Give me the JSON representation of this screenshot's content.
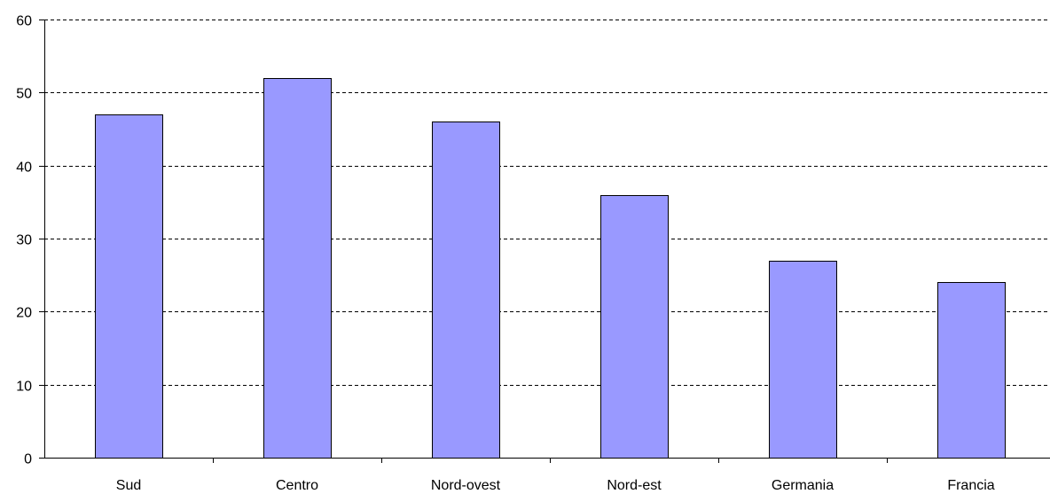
{
  "chart_data": {
    "type": "bar",
    "categories": [
      "Sud",
      "Centro",
      "Nord-ovest",
      "Nord-est",
      "Germania",
      "Francia"
    ],
    "values": [
      47,
      52,
      46,
      36,
      27,
      24
    ],
    "ylim": [
      0,
      60
    ],
    "yticks": [
      0,
      10,
      20,
      30,
      40,
      50,
      60
    ],
    "grid": true,
    "grid_style": "dashed",
    "legend": "none",
    "title": "",
    "xlabel": "",
    "ylabel": "",
    "colors": {
      "bar_fill": "#9999ff",
      "bar_stroke": "#000000",
      "grid": "#000000",
      "axis": "#000000",
      "background": "#ffffff"
    }
  }
}
